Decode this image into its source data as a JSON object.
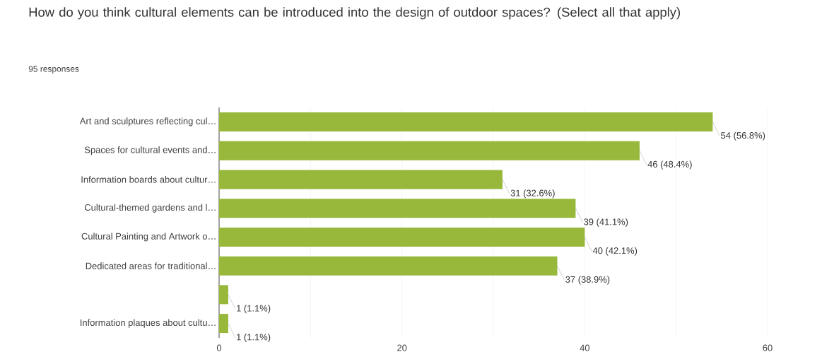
{
  "chart_data": {
    "type": "bar",
    "orientation": "horizontal",
    "title": "How do you think cultural elements can be introduced into the design of outdoor spaces? (Select all that apply)",
    "subtitle": "95 responses",
    "categories": [
      "Art and sculptures reflecting cul…",
      "Spaces for cultural events and…",
      "Information boards about cultur…",
      "Cultural-themed gardens and l…",
      "Cultural Painting and Artwork o…",
      "Dedicated areas for traditional…",
      null,
      "Information plaques about cultu…"
    ],
    "values": [
      54,
      46,
      31,
      39,
      40,
      37,
      1,
      1
    ],
    "value_labels": [
      "54 (56.8%)",
      "46 (48.4%)",
      "31 (32.6%)",
      "39 (41.1%)",
      "40 (42.1%)",
      "37 (38.9%)",
      "1 (1.1%)",
      "1 (1.1%)"
    ],
    "color": "#97b83a",
    "xlim": [
      0,
      60
    ],
    "xticks": [
      0,
      {
        "value": 10,
        "label": null
      },
      20,
      {
        "value": 30,
        "label": null
      },
      40,
      {
        "value": 50,
        "label": null
      },
      60
    ],
    "grid": "x"
  }
}
